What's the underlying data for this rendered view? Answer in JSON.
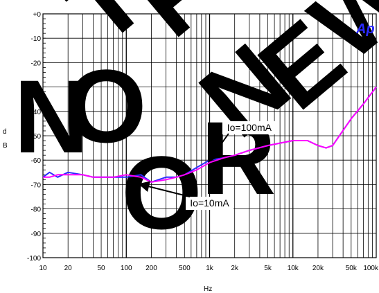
{
  "watermark": "NOT FOR NEW",
  "logo": "Ap",
  "chart_data": {
    "type": "line",
    "xscale": "log",
    "xlim": [
      10,
      100000
    ],
    "ylim": [
      -100,
      0
    ],
    "ylabel": "dB",
    "xlabel": "Hz",
    "grid": true,
    "xticks": [
      10,
      20,
      50,
      100,
      200,
      500,
      1000,
      2000,
      5000,
      10000,
      20000,
      50000,
      100000
    ],
    "xtick_labels": [
      "10",
      "20",
      "50",
      "100",
      "200",
      "500",
      "1k",
      "2k",
      "5k",
      "10k",
      "20k",
      "50k",
      "100k"
    ],
    "yticks": [
      0,
      -10,
      -20,
      -30,
      -40,
      -50,
      -60,
      -70,
      -80,
      -90,
      -100
    ],
    "ytick_labels": [
      "+0",
      "-10",
      "-20",
      "-30",
      "-40",
      "-50",
      "-60",
      "-70",
      "-80",
      "-90",
      "-100"
    ],
    "series": [
      {
        "name": "Io=100mA",
        "color": "#2a2aff",
        "x": [
          10,
          12,
          15,
          20,
          30,
          40,
          50,
          70,
          100,
          150,
          200,
          300,
          400,
          500,
          700,
          1000,
          1500,
          2000,
          3000,
          5000,
          7000,
          10000,
          15000,
          20000,
          25000,
          30000,
          50000,
          70000,
          100000
        ],
        "y": [
          -67,
          -65,
          -67,
          -65,
          -66,
          -67,
          -67,
          -67,
          -67,
          -66,
          -69,
          -67,
          -67,
          -66,
          -63,
          -60,
          -59,
          -58,
          -56,
          -54,
          -53,
          -52,
          -52,
          -54,
          -55,
          -54,
          -43,
          -37,
          -30
        ]
      },
      {
        "name": "Io=10mA",
        "color": "#ff00ff",
        "x": [
          10,
          12,
          15,
          20,
          30,
          40,
          50,
          70,
          100,
          150,
          200,
          300,
          400,
          500,
          700,
          1000,
          1500,
          2000,
          3000,
          5000,
          7000,
          10000,
          15000,
          20000,
          25000,
          30000,
          50000,
          70000,
          100000
        ],
        "y": [
          -67,
          -67,
          -66,
          -66,
          -66,
          -67,
          -67,
          -67,
          -66,
          -67,
          -69,
          -68,
          -67,
          -66,
          -64,
          -61,
          -59,
          -58,
          -56,
          -54,
          -53,
          -52,
          -52,
          -54,
          -55,
          -54,
          -43,
          -37,
          -30
        ]
      }
    ],
    "annotations": [
      {
        "text": "Io=100mA",
        "x": 3000,
        "y": -48,
        "arrow_to": [
          1000,
          -60
        ]
      },
      {
        "text": "Io=10mA",
        "x": 1000,
        "y": -79,
        "arrow_to": [
          150,
          -70
        ]
      }
    ]
  }
}
